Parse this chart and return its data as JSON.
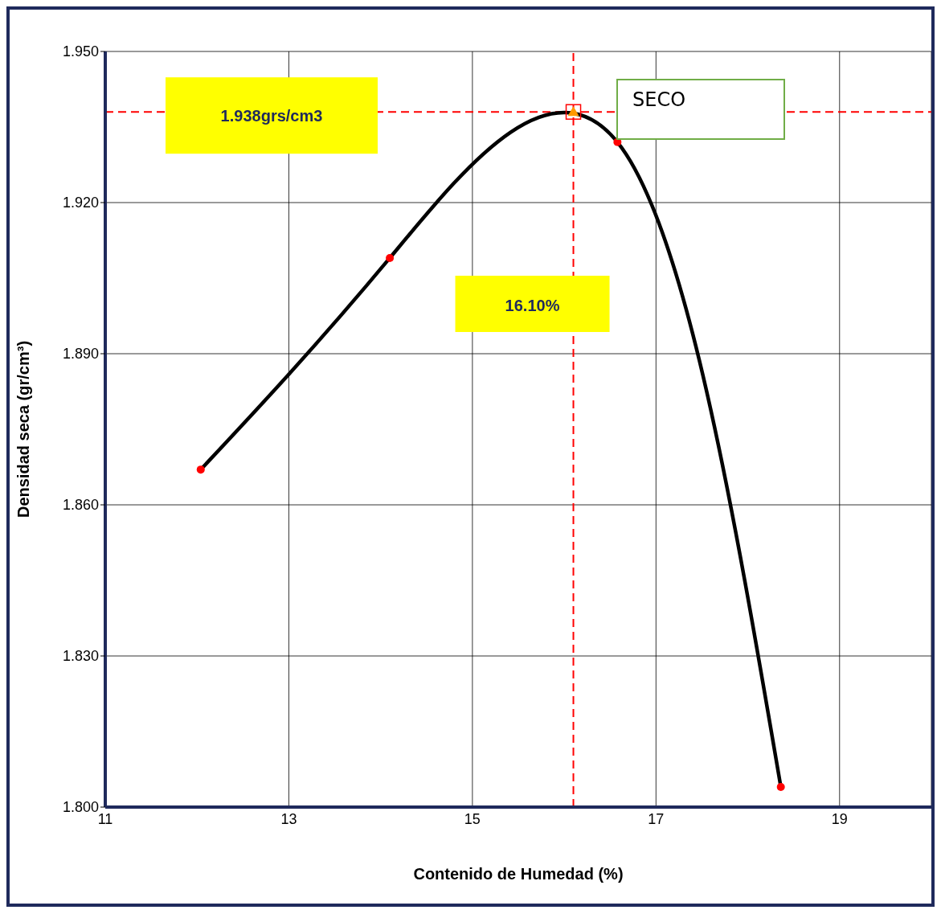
{
  "chart_data": {
    "type": "line",
    "xlabel": "Contenido de Humedad (%)",
    "ylabel": "Densidad seca (gr/cm³)",
    "xlim": [
      11,
      20
    ],
    "xticks": [
      11,
      13,
      15,
      17,
      19
    ],
    "ylim": [
      1.8,
      1.95
    ],
    "yticks": [
      {
        "value": 1.8,
        "label": "1.800"
      },
      {
        "value": 1.83,
        "label": "1.830"
      },
      {
        "value": 1.86,
        "label": "1.860"
      },
      {
        "value": 1.89,
        "label": "1.890"
      },
      {
        "value": 1.92,
        "label": "1.920"
      },
      {
        "value": 1.95,
        "label": "1.950"
      }
    ],
    "grid": true,
    "marker": "circle",
    "line_style": "solid",
    "series": [
      {
        "x": [
          12.04,
          14.1,
          16.58,
          18.36
        ],
        "values": [
          1.867,
          1.909,
          1.932,
          1.804
        ],
        "color": "#000000",
        "colors": [
          "#ff0000",
          "#ff0000",
          "#ff0000",
          "#ff0000"
        ]
      },
      {
        "type": "scatter",
        "marker": "triangle",
        "x": [
          16.1
        ],
        "values": [
          1.938
        ],
        "color": "#ff9900"
      }
    ],
    "ref_lines": [
      {
        "axis": "y",
        "value": 1.938,
        "label": "1.938grs/cm3",
        "color": "#ff0000",
        "line_style": "dashed"
      },
      {
        "axis": "x",
        "value": 16.1,
        "label": "16.10%",
        "color": "#ff0000",
        "line_style": "dashed"
      }
    ],
    "annotations": [
      "SECO"
    ]
  }
}
